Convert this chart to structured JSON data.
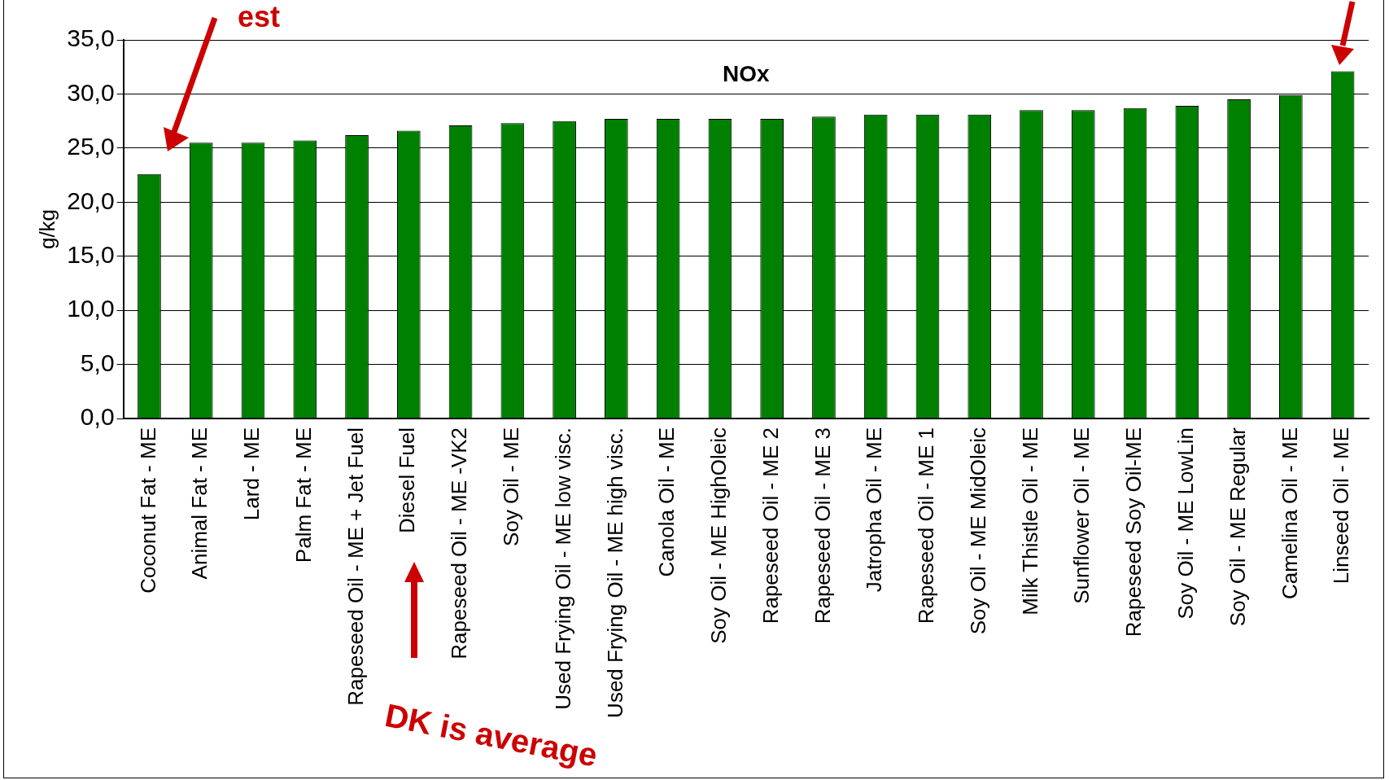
{
  "chart_data": {
    "type": "bar",
    "title": "NOx",
    "ylabel": "g/kg",
    "categories": [
      "Coconut Fat - ME",
      "Animal Fat - ME",
      "Lard - ME",
      "Palm Fat - ME",
      "Rapeseed Oil - ME + Jet Fuel",
      "Diesel Fuel",
      "Rapeseed Oil - ME -VK2",
      "Soy Oil - ME",
      "Used Frying Oil - ME low visc.",
      "Used Frying Oil - ME high visc.",
      "Canola Oil - ME",
      "Soy Oil - ME HighOleic",
      "Rapeseed Oil - ME 2",
      "Rapeseed Oil - ME 3",
      "Jatropha Oil - ME",
      "Rapeseed Oil - ME 1",
      "Soy Oil - ME MidOleic",
      "Milk Thistle Oil - ME",
      "Sunflower Oil - ME",
      "Rapeseed Soy Oil-ME",
      "Soy Oil - ME LowLin",
      "Soy Oil - ME Regular",
      "Camelina Oil - ME",
      "Linseed Oil - ME"
    ],
    "values": [
      22.6,
      25.5,
      25.5,
      25.7,
      26.2,
      26.6,
      27.1,
      27.3,
      27.5,
      27.7,
      27.7,
      27.7,
      27.7,
      27.9,
      28.1,
      28.1,
      28.1,
      28.5,
      28.5,
      28.7,
      28.9,
      29.5,
      29.9,
      32.1
    ],
    "color": "#008000",
    "ylim": [
      0,
      35
    ],
    "yticks": [
      {
        "value": 0,
        "label": "0,0"
      },
      {
        "value": 5,
        "label": "5,0"
      },
      {
        "value": 10,
        "label": "10,0"
      },
      {
        "value": 15,
        "label": "15,0"
      },
      {
        "value": 20,
        "label": "20,0"
      },
      {
        "value": 25,
        "label": "25,0"
      },
      {
        "value": 30,
        "label": "30,0"
      },
      {
        "value": 35,
        "label": "35,0"
      }
    ],
    "grid": "y",
    "annotations": [
      "est",
      "DK is average"
    ]
  }
}
